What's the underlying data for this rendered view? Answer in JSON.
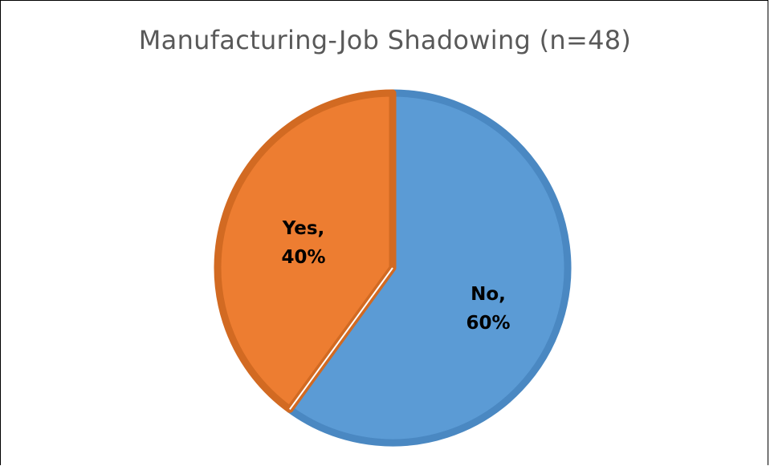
{
  "chart_data": {
    "type": "pie",
    "title": "Manufacturing-Job Shadowing (n=48)",
    "slices": [
      {
        "label": "No",
        "value": 60,
        "display": [
          "No,",
          "60%"
        ],
        "color": "#5B9BD5",
        "edge": "#4A88C2"
      },
      {
        "label": "Yes",
        "value": 40,
        "display": [
          "Yes,",
          "40%"
        ],
        "color": "#ED7D31",
        "edge": "#D26A22"
      }
    ],
    "start": "12 o'clock",
    "direction": "clockwise",
    "legend": "none",
    "data_labels": "inside"
  }
}
